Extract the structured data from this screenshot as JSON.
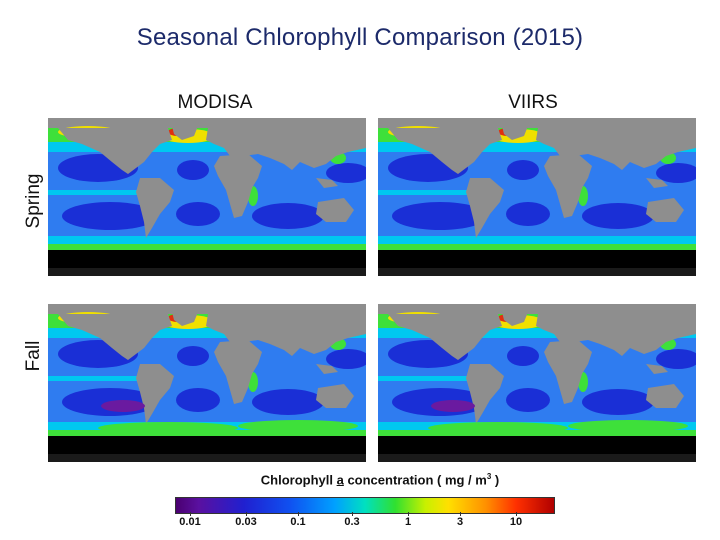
{
  "title": "Seasonal Chlorophyll Comparison (2015)",
  "columns": [
    "MODISA",
    "VIIRS"
  ],
  "rows": [
    "Spring",
    "Fall"
  ],
  "colorbar": {
    "label_pre": "Chlorophyll ",
    "label_a": "a",
    "label_post": " concentration ( mg / m",
    "label_exp": "3",
    "label_end": " )",
    "ticks": [
      "0.01",
      "0.03",
      "0.1",
      "0.3",
      "1",
      "3",
      "10"
    ]
  },
  "colors": {
    "land": "#8e8e8e",
    "no_data": "#000000",
    "gyre": "#1a2fd6",
    "open_ocean": "#2f7cf0",
    "shelf": "#00c8f0",
    "coastal": "#3ee03a",
    "productive": "#f0e000",
    "bloom": "#e03010",
    "extreme": "#b00000"
  }
}
